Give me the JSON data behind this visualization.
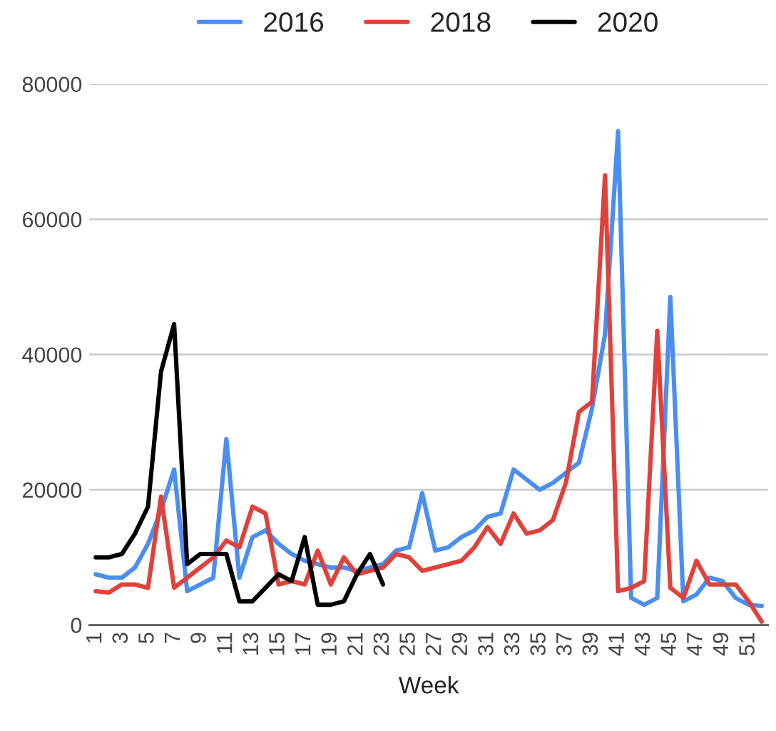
{
  "chart_data": {
    "type": "line",
    "xlabel": "Week",
    "categories": [
      "1",
      null,
      "3",
      null,
      "5",
      null,
      "7",
      null,
      "9",
      null,
      "11",
      null,
      "13",
      null,
      "15",
      null,
      "17",
      null,
      "19",
      null,
      "21",
      null,
      "23",
      null,
      "25",
      null,
      "27",
      null,
      "29",
      null,
      "31",
      null,
      "33",
      null,
      "35",
      null,
      "37",
      null,
      "39",
      null,
      "41",
      null,
      "43",
      null,
      "45",
      null,
      "47",
      null,
      "49",
      null,
      "51",
      null
    ],
    "series": [
      {
        "name": "2016",
        "color": "#4a8ef0",
        "values": [
          7500,
          7000,
          7000,
          8500,
          12000,
          17000,
          23000,
          5000,
          6000,
          7000,
          27500,
          7000,
          13000,
          14000,
          12000,
          10500,
          9500,
          9000,
          8500,
          8500,
          8000,
          8500,
          9000,
          11000,
          11500,
          19500,
          11000,
          11500,
          13000,
          14000,
          16000,
          16500,
          23000,
          21500,
          20000,
          21000,
          22500,
          24000,
          32000,
          43000,
          73000,
          4000,
          3000,
          4000,
          48500,
          3500,
          4500,
          7000,
          6500,
          4000,
          3000,
          2800
        ]
      },
      {
        "name": "2018",
        "color": "#e0413a",
        "values": [
          5000,
          4800,
          6000,
          6000,
          5500,
          19000,
          5500,
          7000,
          8500,
          10000,
          12500,
          11500,
          17500,
          16500,
          6000,
          6500,
          6000,
          11000,
          6000,
          10000,
          7500,
          8000,
          8500,
          10500,
          10000,
          8000,
          8500,
          9000,
          9500,
          11500,
          14500,
          12000,
          16500,
          13500,
          14000,
          15500,
          21000,
          31500,
          33000,
          66500,
          5000,
          5500,
          6500,
          43500,
          5500,
          4000,
          9500,
          6000,
          6000,
          6000,
          3500,
          500
        ]
      },
      {
        "name": "2020",
        "color": "#000000",
        "values": [
          10000,
          10000,
          10500,
          13500,
          17500,
          37500,
          44500,
          9000,
          10500,
          10500,
          10500,
          3500,
          3500,
          5500,
          7500,
          6500,
          13000,
          3000,
          3000,
          3500,
          7500,
          10500,
          6000,
          null,
          null,
          null,
          null,
          null,
          null,
          null,
          null,
          null,
          null,
          null,
          null,
          null,
          null,
          null,
          null,
          null,
          null,
          null,
          null,
          null,
          null,
          null,
          null,
          null,
          null,
          null,
          null,
          null
        ]
      }
    ],
    "ylim": [
      0,
      80000
    ],
    "yticks": [
      0,
      20000,
      40000,
      60000,
      80000
    ],
    "grid": "y",
    "legend": "top",
    "line_style": "solid",
    "marker": "none"
  }
}
